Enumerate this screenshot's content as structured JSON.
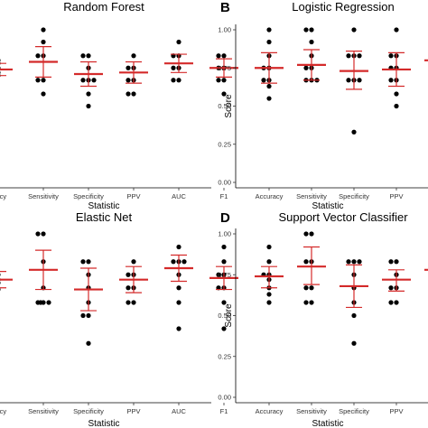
{
  "chart_data": [
    {
      "type": "scatter",
      "panel_label": "",
      "title": "Random Forest",
      "xlabel": "Statistic",
      "ylabel": "",
      "show_yticks": false,
      "ylim": [
        0,
        1
      ],
      "yticks": [],
      "categories": [
        "Accuracy",
        "Sensitivity",
        "Specificity",
        "PPV",
        "AUC",
        "F1"
      ],
      "category_labels": [
        "uracy",
        "Sensitivity",
        "Specificity",
        "PPV",
        "AUC",
        "F1"
      ],
      "points": [
        [
          0.75,
          0.72,
          0.7,
          0.78,
          0.8
        ],
        [
          1.0,
          0.92,
          0.83,
          0.83,
          0.67,
          0.67,
          0.58
        ],
        [
          0.83,
          0.83,
          0.75,
          0.67,
          0.67,
          0.67,
          0.58,
          0.5
        ],
        [
          0.83,
          0.75,
          0.75,
          0.67,
          0.67,
          0.58,
          0.58
        ],
        [
          0.92,
          0.83,
          0.83,
          0.75,
          0.75,
          0.67,
          0.67
        ],
        [
          0.83,
          0.83,
          0.75,
          0.75,
          0.67,
          0.67,
          0.58
        ]
      ],
      "mean": [
        0.74,
        0.79,
        0.71,
        0.72,
        0.78,
        0.75
      ],
      "upper": [
        0.78,
        0.89,
        0.79,
        0.79,
        0.84,
        0.81
      ],
      "lower": [
        0.7,
        0.69,
        0.63,
        0.65,
        0.72,
        0.69
      ]
    },
    {
      "type": "scatter",
      "panel_label": "B",
      "title": "Logistic Regression",
      "xlabel": "Statistic",
      "ylabel": "Score",
      "show_yticks": true,
      "ylim": [
        0,
        1
      ],
      "yticks": [
        "0.00",
        "0.25",
        "0.50",
        "0.75",
        "1.00"
      ],
      "categories": [
        "Accuracy",
        "Sensitivity",
        "Specificity",
        "PPV",
        "AUC"
      ],
      "category_labels": [
        "Accuracy",
        "Sensitivity",
        "Specificity",
        "PPV",
        "AU"
      ],
      "points": [
        [
          1.0,
          0.92,
          0.83,
          0.75,
          0.75,
          0.67,
          0.67,
          0.63,
          0.55
        ],
        [
          1.0,
          1.0,
          0.92,
          0.83,
          0.75,
          0.75,
          0.67,
          0.67,
          0.67
        ],
        [
          1.0,
          0.83,
          0.83,
          0.83,
          0.67,
          0.67,
          0.67,
          0.33
        ],
        [
          1.0,
          0.83,
          0.83,
          0.75,
          0.75,
          0.67,
          0.67,
          0.58,
          0.5
        ],
        [
          0.92,
          0.92,
          0.88,
          0.83,
          0.8,
          0.75,
          0.67,
          0.58
        ]
      ],
      "mean": [
        0.75,
        0.77,
        0.73,
        0.74,
        0.8
      ],
      "upper": [
        0.85,
        0.87,
        0.86,
        0.85,
        0.88
      ],
      "lower": [
        0.65,
        0.67,
        0.61,
        0.63,
        0.72
      ]
    },
    {
      "type": "scatter",
      "panel_label": "",
      "title": "Elastic Net",
      "xlabel": "Statistic",
      "ylabel": "",
      "show_yticks": false,
      "ylim": [
        0,
        1
      ],
      "yticks": [],
      "categories": [
        "Accuracy",
        "Sensitivity",
        "Specificity",
        "PPV",
        "AUC",
        "F1"
      ],
      "category_labels": [
        "uracy",
        "Sensitivity",
        "Specificity",
        "PPV",
        "AUC",
        "F1"
      ],
      "points": [
        [
          0.75,
          0.72,
          0.7,
          0.66
        ],
        [
          1.0,
          1.0,
          0.83,
          0.67,
          0.58,
          0.58,
          0.58,
          0.58
        ],
        [
          0.83,
          0.83,
          0.75,
          0.67,
          0.58,
          0.5,
          0.5,
          0.33
        ],
        [
          0.83,
          0.75,
          0.75,
          0.67,
          0.67,
          0.58,
          0.58
        ],
        [
          0.92,
          0.83,
          0.83,
          0.83,
          0.75,
          0.67,
          0.58,
          0.42
        ],
        [
          0.92,
          0.83,
          0.75,
          0.75,
          0.67,
          0.67,
          0.58,
          0.42
        ]
      ],
      "mean": [
        0.72,
        0.78,
        0.66,
        0.72,
        0.79,
        0.73
      ],
      "upper": [
        0.77,
        0.9,
        0.79,
        0.8,
        0.87,
        0.8
      ],
      "lower": [
        0.67,
        0.66,
        0.53,
        0.64,
        0.71,
        0.66
      ]
    },
    {
      "type": "scatter",
      "panel_label": "D",
      "title": "Support Vector Classifier",
      "xlabel": "Statistic",
      "ylabel": "Score",
      "show_yticks": true,
      "ylim": [
        0,
        1
      ],
      "yticks": [
        "0.00",
        "0.25",
        "0.50",
        "0.75",
        "1.00"
      ],
      "categories": [
        "Accuracy",
        "Sensitivity",
        "Specificity",
        "PPV",
        "AUC"
      ],
      "category_labels": [
        "Accuracy",
        "Sensitivity",
        "Specificity",
        "PPV",
        "AU"
      ],
      "points": [
        [
          0.92,
          0.83,
          0.75,
          0.75,
          0.72,
          0.67,
          0.63,
          0.58
        ],
        [
          1.0,
          1.0,
          0.83,
          0.83,
          0.67,
          0.67,
          0.58,
          0.58
        ],
        [
          0.83,
          0.83,
          0.83,
          0.75,
          0.67,
          0.58,
          0.5,
          0.33
        ],
        [
          0.83,
          0.83,
          0.75,
          0.67,
          0.67,
          0.58,
          0.58
        ],
        [
          0.92,
          0.88,
          0.83,
          0.75,
          0.75,
          0.67,
          0.58,
          0.5,
          0.42
        ]
      ],
      "mean": [
        0.74,
        0.8,
        0.68,
        0.72,
        0.78
      ],
      "upper": [
        0.8,
        0.92,
        0.81,
        0.78,
        0.89
      ],
      "lower": [
        0.67,
        0.69,
        0.55,
        0.65,
        0.66
      ]
    }
  ],
  "colors": {
    "mean_bar": "#d42a2a",
    "points": "#000000",
    "axis": "#000000"
  }
}
